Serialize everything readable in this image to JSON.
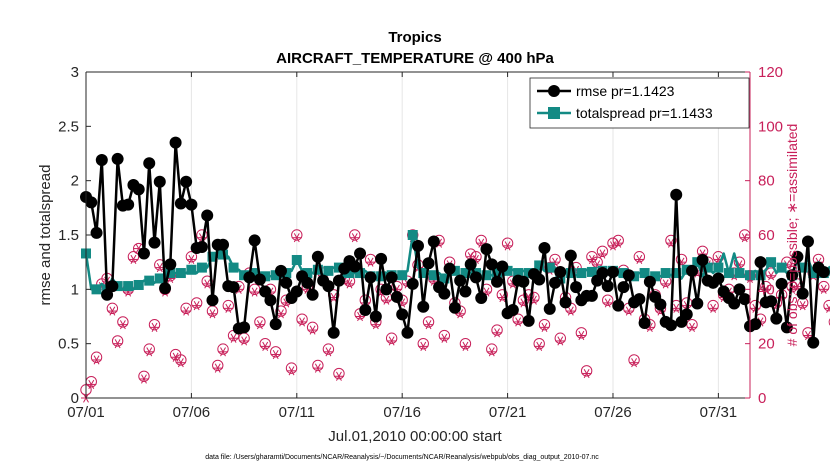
{
  "colors": {
    "rmse": "#000000",
    "totalspread": "#138a84",
    "obs": "#c8205a",
    "axis": "#262626",
    "right_axis": "#c8205a"
  },
  "chart_data": {
    "type": "line",
    "title": "Tropics",
    "subtitle": "AIRCRAFT_TEMPERATURE @ 400 hPa",
    "xlabel": "Jul.01,2010 00:00:00 start",
    "ylabel_left": "rmse and totalspread",
    "ylabel_right": "# of obs: o=possible; ∗=assimilated",
    "footer": "data file: /Users/gharamti/Documents/NCAR/Reanalysis/~/Documents/NCAR/Reanalysis/webpub/obs_diag_output_2010-07.nc",
    "x_unit": "days since Jul.01 00:00, 6-hourly samples",
    "xlim": [
      0,
      31.5
    ],
    "ylim_left": [
      0,
      3
    ],
    "ylim_right": [
      0,
      120
    ],
    "x_ticks": [
      {
        "value": 0,
        "label": "07/01"
      },
      {
        "value": 5,
        "label": "07/06"
      },
      {
        "value": 10,
        "label": "07/11"
      },
      {
        "value": 15,
        "label": "07/16"
      },
      {
        "value": 20,
        "label": "07/21"
      },
      {
        "value": 25,
        "label": "07/26"
      },
      {
        "value": 30,
        "label": "07/31"
      }
    ],
    "y_ticks_left": [
      {
        "value": 0,
        "label": "0"
      },
      {
        "value": 0.5,
        "label": "0.5"
      },
      {
        "value": 1,
        "label": "1"
      },
      {
        "value": 1.5,
        "label": "1.5"
      },
      {
        "value": 2,
        "label": "2"
      },
      {
        "value": 2.5,
        "label": "2.5"
      },
      {
        "value": 3,
        "label": "3"
      }
    ],
    "y_ticks_right": [
      {
        "value": 0,
        "label": "0"
      },
      {
        "value": 20,
        "label": "20"
      },
      {
        "value": 40,
        "label": "40"
      },
      {
        "value": 60,
        "label": "60"
      },
      {
        "value": 80,
        "label": "80"
      },
      {
        "value": 100,
        "label": "100"
      },
      {
        "value": 120,
        "label": "120"
      }
    ],
    "legend": {
      "position": "top-right",
      "entries": [
        {
          "series": "rmse",
          "label": "rmse pr=1.1423"
        },
        {
          "series": "totalspread",
          "label": "totalspread pr=1.1433"
        }
      ]
    },
    "series": [
      {
        "name": "rmse",
        "axis": "left",
        "values": [
          1.85,
          1.8,
          1.52,
          2.19,
          0.95,
          1.03,
          2.2,
          1.77,
          1.78,
          1.96,
          1.92,
          1.33,
          2.16,
          1.43,
          1.99,
          1.01,
          1.23,
          2.35,
          1.79,
          1.99,
          1.78,
          1.38,
          1.39,
          1.68,
          0.9,
          1.41,
          1.41,
          1.03,
          1.02,
          0.64,
          0.65,
          1.11,
          1.45,
          1.09,
          0.98,
          0.9,
          0.68,
          1.17,
          1.06,
          0.92,
          0.98,
          1.12,
          1.06,
          0.95,
          1.3,
          1.08,
          1.03,
          0.6,
          1.08,
          1.19,
          1.26,
          1.21,
          1.33,
          0.81,
          1.11,
          0.75,
          1.28,
          1.0,
          1.11,
          0.93,
          0.77,
          0.6,
          1.05,
          1.4,
          0.84,
          1.24,
          1.44,
          1.02,
          0.96,
          1.19,
          0.83,
          1.08,
          0.98,
          1.23,
          1.11,
          0.92,
          1.37,
          1.23,
          1.07,
          1.21,
          0.78,
          0.81,
          1.08,
          1.07,
          0.71,
          1.14,
          1.09,
          1.38,
          0.82,
          1.06,
          1.16,
          0.88,
          1.31,
          1.02,
          0.9,
          0.94,
          0.94,
          1.08,
          1.15,
          1.03,
          1.16,
          0.85,
          1.02,
          1.13,
          0.88,
          0.91,
          0.69,
          1.07,
          0.93,
          0.86,
          0.7,
          0.67,
          1.87,
          0.7,
          0.77,
          1.17,
          0.87,
          1.27,
          1.08,
          1.06,
          1.1,
          0.98,
          0.92,
          0.87,
          1.0,
          0.91,
          0.66,
          0.68,
          1.25,
          0.88,
          0.89,
          0.73,
          1.05,
          0.65,
          1.13,
          1.3,
          0.96,
          1.44,
          0.51,
          1.2,
          1.16
        ],
        "markers_every_point": true
      },
      {
        "name": "totalspread",
        "axis": "left",
        "values": [
          1.33,
          1.0,
          1.0,
          1.05,
          1.0,
          1.1,
          1.03,
          1.0,
          1.03,
          1.0,
          1.04,
          1.08,
          1.08,
          1.06,
          1.1,
          1.12,
          1.15,
          1.15,
          1.15,
          1.15,
          1.18,
          1.15,
          1.2,
          1.2,
          1.3,
          1.3,
          1.32,
          1.3,
          1.2,
          1.18,
          1.13,
          1.15,
          1.15,
          1.13,
          1.12,
          1.12,
          1.13,
          1.13,
          1.15,
          1.17,
          1.27,
          1.17,
          1.15,
          1.15,
          1.18,
          1.13,
          1.17,
          1.2,
          1.2,
          1.12,
          1.15,
          1.15,
          1.15,
          1.17,
          1.12,
          1.1,
          1.12,
          1.15,
          1.13,
          1.13,
          1.13,
          1.17,
          1.5,
          1.2,
          1.15,
          1.14,
          1.13,
          1.15,
          1.1,
          1.17,
          1.17,
          1.12,
          1.15,
          1.15,
          1.15,
          1.12,
          1.13,
          1.13,
          1.15,
          1.15,
          1.17,
          1.18,
          1.15,
          1.17,
          1.15,
          1.15,
          1.22,
          1.17,
          1.2,
          1.2,
          1.1,
          1.17,
          1.15,
          1.13,
          1.15,
          1.18,
          1.16,
          1.15,
          1.17,
          1.14,
          1.17,
          1.13,
          1.15,
          1.1,
          1.12,
          1.15,
          1.15,
          1.1,
          1.12,
          1.12,
          1.15,
          1.13,
          1.15,
          1.1,
          1.18,
          1.15,
          1.25,
          1.12,
          1.2,
          1.15,
          1.2,
          1.33,
          1.15,
          1.33,
          1.15,
          1.12,
          1.13,
          1.17,
          1.13,
          1.18,
          1.25,
          1.15,
          1.2,
          1.15,
          1.13,
          1.27,
          1.2,
          1.28,
          1.15,
          1.25,
          1.15,
          1.2,
          1.17
        ],
        "markers_every_point": false
      },
      {
        "name": "obs_possible",
        "axis": "right",
        "marker": "circle",
        "values": [
          3,
          6,
          15,
          42,
          44,
          33,
          21,
          28,
          40,
          52,
          55,
          8,
          18,
          27,
          49,
          40,
          45,
          16,
          14,
          33,
          52,
          35,
          60,
          43,
          32,
          12,
          18,
          34,
          23,
          41,
          22,
          46,
          40,
          28,
          20,
          40,
          17,
          32,
          36,
          11,
          60,
          29,
          41,
          26,
          12,
          46,
          18,
          38,
          9,
          44,
          43,
          60,
          31,
          36,
          51,
          28,
          40,
          37,
          22,
          41,
          36,
          43,
          60,
          49,
          20,
          28,
          44,
          58,
          23,
          50,
          35,
          32,
          20,
          53,
          52,
          58,
          40,
          18,
          25,
          38,
          57,
          43,
          29,
          36,
          38,
          37,
          20,
          27,
          48,
          51,
          22,
          37,
          33,
          48,
          24,
          10,
          52,
          50,
          54,
          36,
          57,
          58,
          47,
          33,
          14,
          52,
          29,
          27,
          38,
          33,
          43,
          58,
          34,
          51,
          35,
          27,
          47,
          54,
          50,
          34,
          52,
          38,
          40,
          46,
          50,
          60,
          45,
          34,
          29,
          41,
          46,
          35,
          38,
          50,
          41,
          42,
          35,
          24,
          46,
          51,
          41,
          34,
          28
        ]
      },
      {
        "name": "obs_assimilated",
        "axis": "right",
        "marker": "asterisk",
        "values": [
          0,
          5,
          14,
          41,
          43,
          32,
          20,
          27,
          39,
          51,
          55,
          7,
          17,
          26,
          48,
          39,
          44,
          15,
          13,
          32,
          51,
          34,
          59,
          42,
          31,
          11,
          17,
          33,
          22,
          40,
          21,
          45,
          39,
          27,
          19,
          39,
          16,
          31,
          35,
          10,
          59,
          28,
          40,
          25,
          11,
          45,
          17,
          37,
          8,
          43,
          42,
          59,
          30,
          35,
          50,
          27,
          39,
          36,
          21,
          40,
          35,
          42,
          59,
          48,
          19,
          27,
          43,
          57,
          22,
          49,
          34,
          31,
          19,
          52,
          51,
          57,
          39,
          17,
          24,
          37,
          56,
          42,
          28,
          35,
          37,
          36,
          19,
          26,
          47,
          50,
          21,
          36,
          32,
          47,
          23,
          9,
          51,
          49,
          53,
          35,
          56,
          57,
          46,
          32,
          13,
          51,
          28,
          26,
          37,
          32,
          42,
          57,
          33,
          50,
          34,
          26,
          46,
          53,
          49,
          33,
          51,
          37,
          39,
          45,
          49,
          59,
          44,
          33,
          28,
          40,
          45,
          34,
          37,
          49,
          40,
          41,
          34,
          23,
          45,
          50,
          40,
          33,
          27
        ]
      }
    ]
  }
}
